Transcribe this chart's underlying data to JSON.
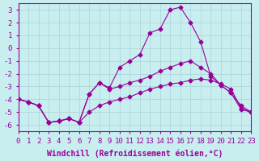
{
  "xlabel": "Windchill (Refroidissement éolien,°C)",
  "background_color": "#c8eef0",
  "grid_color": "#aad4d8",
  "line_color": "#990099",
  "xlim": [
    0,
    23
  ],
  "ylim": [
    -6.5,
    3.5
  ],
  "yticks": [
    -6,
    -5,
    -4,
    -3,
    -2,
    -1,
    0,
    1,
    2,
    3
  ],
  "xticks": [
    0,
    1,
    2,
    3,
    4,
    5,
    6,
    7,
    8,
    9,
    10,
    11,
    12,
    13,
    14,
    15,
    16,
    17,
    18,
    19,
    20,
    21,
    22,
    23
  ],
  "sa_y": [
    -4.0,
    -4.2,
    -4.5,
    -5.8,
    -5.7,
    -5.5,
    -5.8,
    -5.0,
    -4.5,
    -4.2,
    -4.0,
    -3.8,
    -3.5,
    -3.2,
    -3.0,
    -2.8,
    -2.7,
    -2.5,
    -2.4,
    -2.5,
    -2.8,
    -3.2,
    -4.7,
    -5.0
  ],
  "sb_y": [
    -4.0,
    -4.2,
    -4.5,
    -5.8,
    -5.7,
    -5.5,
    -5.8,
    -3.6,
    -2.7,
    -3.2,
    -3.0,
    -2.7,
    -2.5,
    -2.2,
    -1.8,
    -1.5,
    -1.2,
    -1.0,
    -1.5,
    -2.0,
    -2.9,
    -3.5,
    -4.5,
    -5.0
  ],
  "sc_y": [
    -4.0,
    -4.2,
    -4.5,
    -5.8,
    -5.7,
    -5.5,
    -5.8,
    -3.6,
    -2.7,
    -3.1,
    -1.5,
    -1.0,
    -0.5,
    1.2,
    1.5,
    3.0,
    3.2,
    2.0,
    0.5,
    -2.2,
    -2.9,
    -3.5,
    -4.8,
    -5.0
  ],
  "xlabel_fontsize": 7,
  "tick_fontsize": 6.5,
  "linewidth": 0.8,
  "markersize": 2.5
}
